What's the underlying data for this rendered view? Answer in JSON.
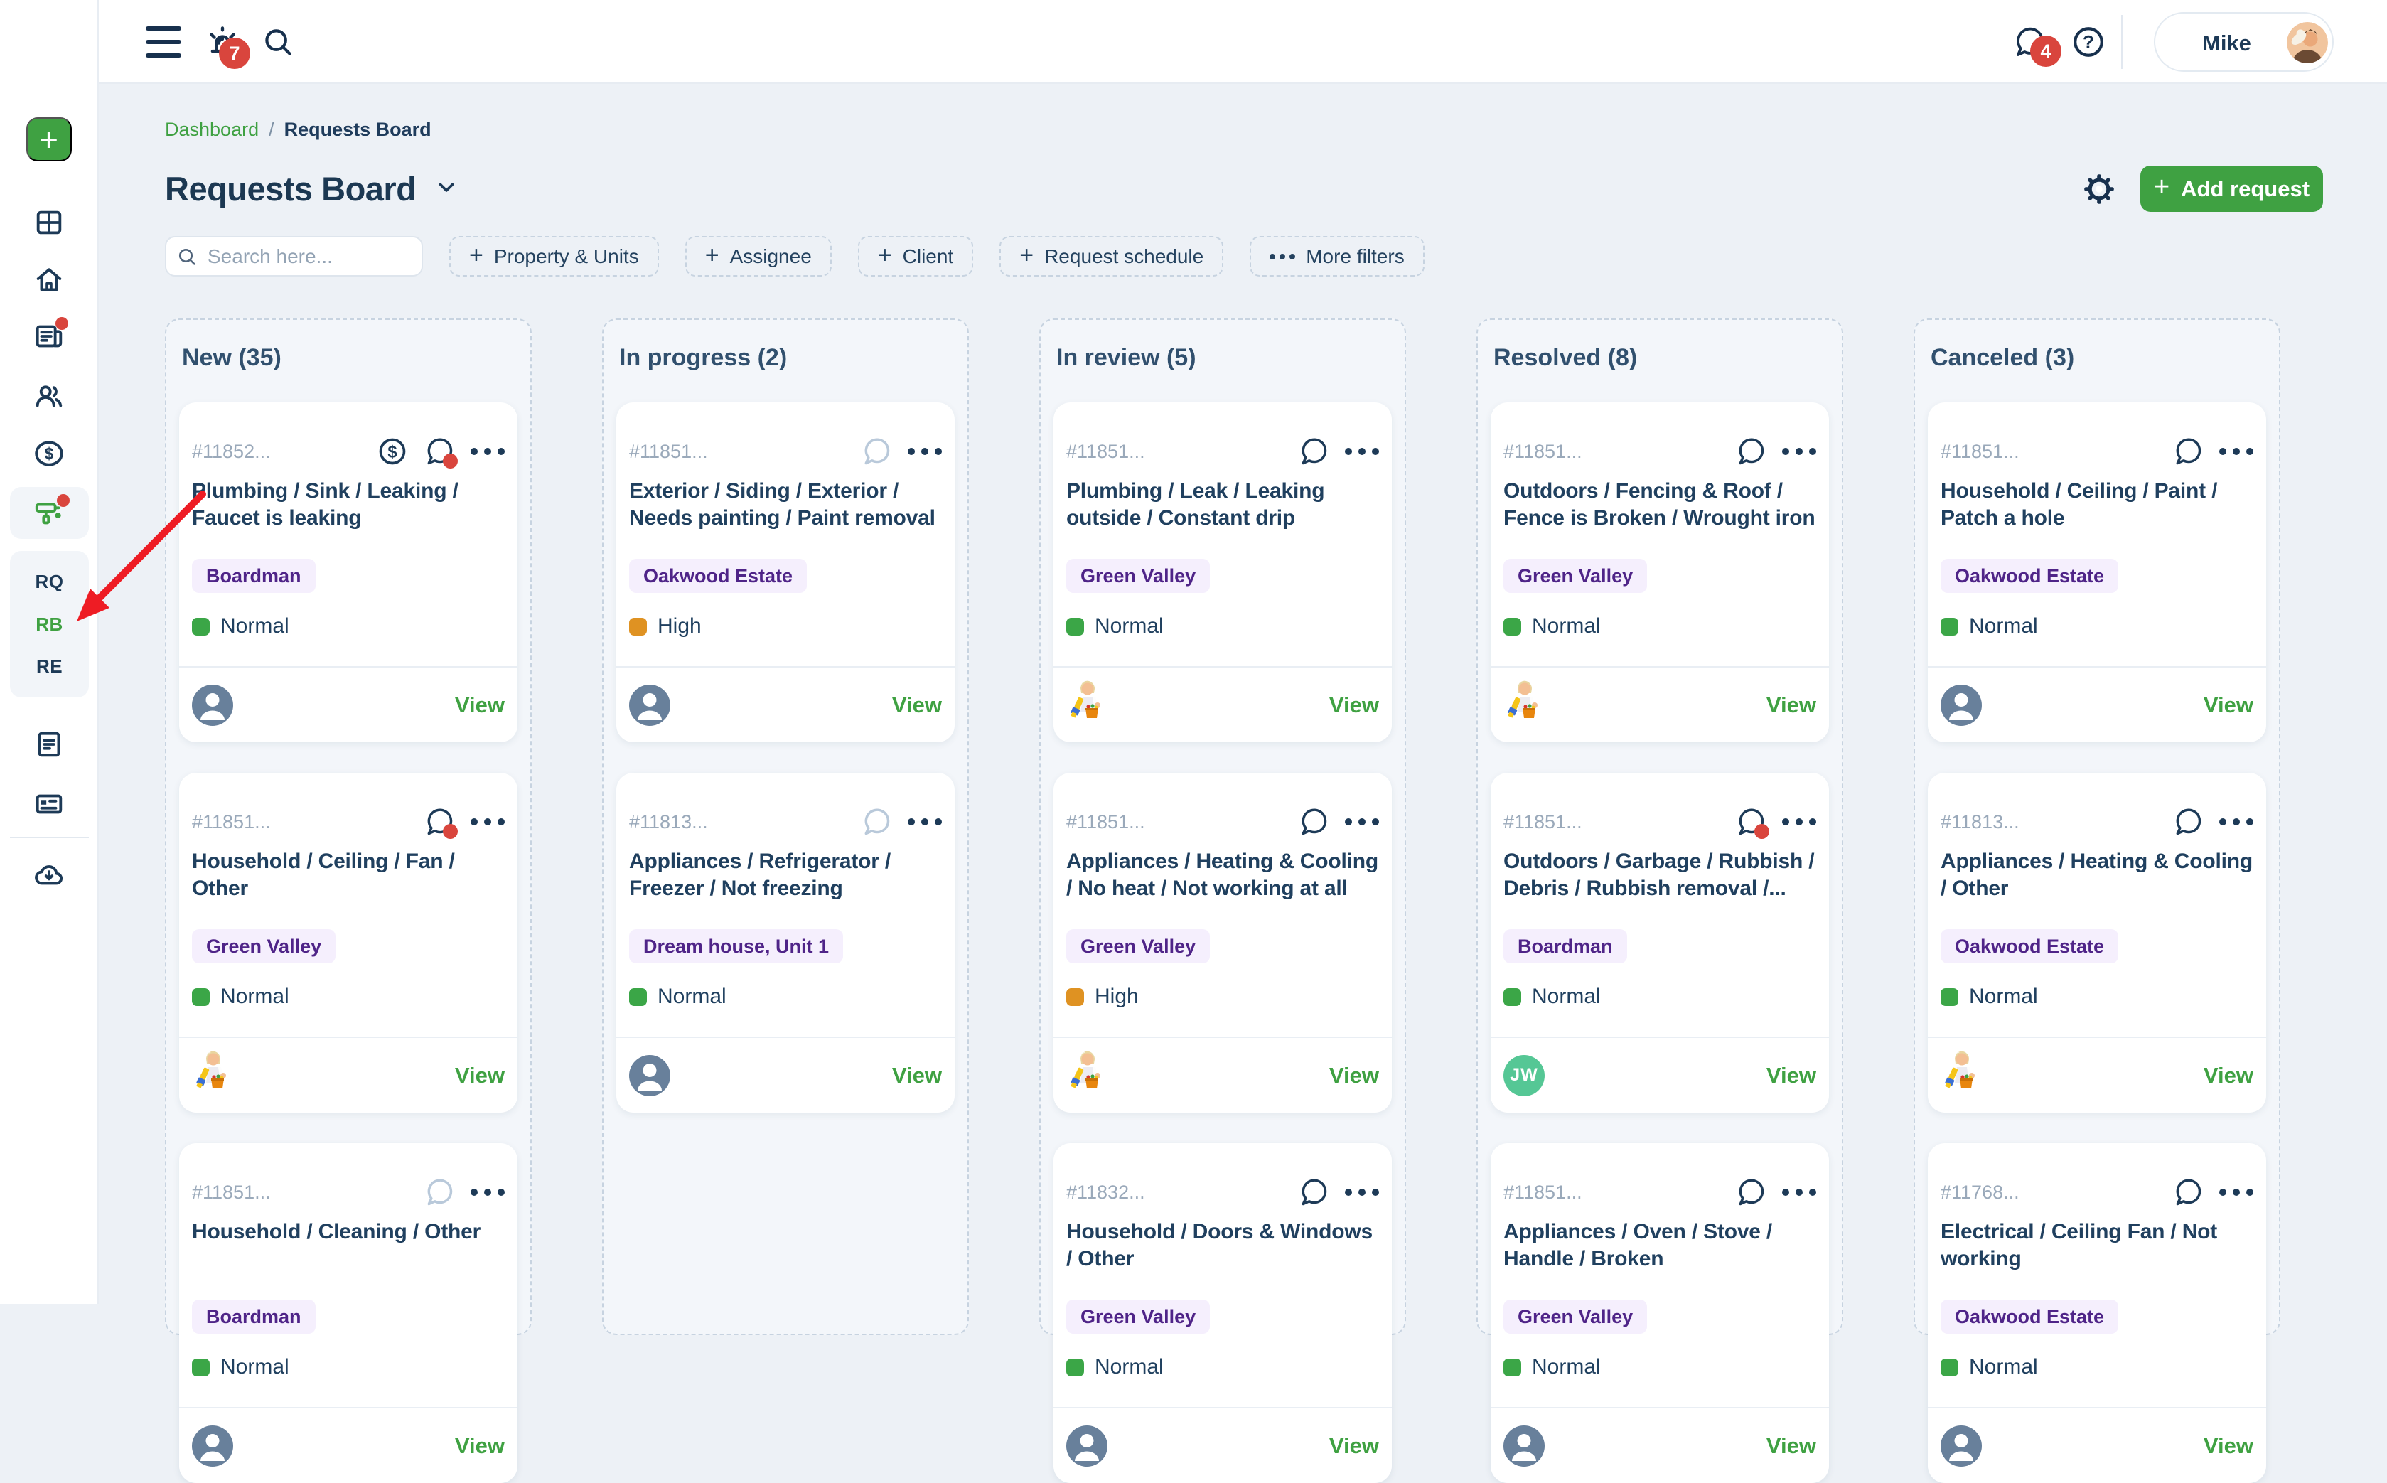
{
  "topbar": {
    "notifications_badge": "7",
    "messages_badge": "4",
    "user_name": "Mike"
  },
  "breadcrumb": {
    "parent": "Dashboard",
    "separator": "/",
    "current": "Requests Board"
  },
  "page": {
    "title": "Requests Board"
  },
  "actions": {
    "add_request": "Add request"
  },
  "glyphs": {
    "plus": "+"
  },
  "filters": {
    "search_placeholder": "Search here...",
    "chips": [
      {
        "label": "Property & Units"
      },
      {
        "label": "Assignee"
      },
      {
        "label": "Client"
      },
      {
        "label": "Request schedule"
      }
    ],
    "more_filters": "More filters"
  },
  "sidebar": {
    "icons": [
      "add",
      "dashboard-grid",
      "home",
      "news",
      "people",
      "billing",
      "requests-roller",
      "documents",
      "reports",
      "downloads"
    ],
    "shortcuts": [
      {
        "label": "RQ",
        "active": false
      },
      {
        "label": "RB",
        "active": true
      },
      {
        "label": "RE",
        "active": false
      }
    ]
  },
  "colors": {
    "accent_green": "#3fa142",
    "badge_red": "#d9453d",
    "priority_normal": "#3ba647",
    "priority_high": "#df9222",
    "tag_purple_bg": "#f5effd",
    "tag_purple_text": "#4f2488",
    "navy": "#1d3a57"
  },
  "board": {
    "view_label": "View",
    "columns": [
      {
        "title": "New (35)",
        "cards": [
          {
            "id": "#11852...",
            "icons": {
              "money": true,
              "chat": "dark",
              "chat_dot": true
            },
            "title": "Plumbing / Sink / Leaking / Faucet is leaking",
            "tag": "Boardman",
            "priority": {
              "label": "Normal",
              "level": "normal"
            },
            "avatar": {
              "type": "placeholder"
            }
          },
          {
            "id": "#11851...",
            "icons": {
              "money": false,
              "chat": "dark",
              "chat_dot": true
            },
            "title": "Household / Ceiling / Fan / Other",
            "tag": "Green Valley",
            "priority": {
              "label": "Normal",
              "level": "normal"
            },
            "avatar": {
              "type": "photo"
            }
          },
          {
            "id": "#11851...",
            "icons": {
              "money": false,
              "chat": "light",
              "chat_dot": false
            },
            "title": "Household / Cleaning / Other",
            "tag": "Boardman",
            "priority": {
              "label": "Normal",
              "level": "normal"
            },
            "avatar": {
              "type": "placeholder"
            }
          }
        ]
      },
      {
        "title": "In progress (2)",
        "cards": [
          {
            "id": "#11851...",
            "icons": {
              "money": false,
              "chat": "light",
              "chat_dot": false
            },
            "title": "Exterior / Siding / Exterior / Needs painting / Paint removal",
            "tag": "Oakwood Estate",
            "priority": {
              "label": "High",
              "level": "high"
            },
            "avatar": {
              "type": "placeholder"
            }
          },
          {
            "id": "#11813...",
            "icons": {
              "money": false,
              "chat": "light",
              "chat_dot": false
            },
            "title": "Appliances / Refrigerator / Freezer / Not freezing",
            "tag": "Dream house, Unit 1",
            "priority": {
              "label": "Normal",
              "level": "normal"
            },
            "avatar": {
              "type": "placeholder"
            }
          }
        ]
      },
      {
        "title": "In review (5)",
        "cards": [
          {
            "id": "#11851...",
            "icons": {
              "money": false,
              "chat": "dark",
              "chat_dot": false
            },
            "title": "Plumbing / Leak / Leaking outside / Constant drip",
            "tag": "Green Valley",
            "priority": {
              "label": "Normal",
              "level": "normal"
            },
            "avatar": {
              "type": "photo"
            }
          },
          {
            "id": "#11851...",
            "icons": {
              "money": false,
              "chat": "dark",
              "chat_dot": false
            },
            "title": "Appliances / Heating & Cooling / No heat / Not working at all",
            "tag": "Green Valley",
            "priority": {
              "label": "High",
              "level": "high"
            },
            "avatar": {
              "type": "photo"
            }
          },
          {
            "id": "#11832...",
            "icons": {
              "money": false,
              "chat": "dark",
              "chat_dot": false
            },
            "title": "Household / Doors & Windows / Other",
            "tag": "Green Valley",
            "priority": {
              "label": "Normal",
              "level": "normal"
            },
            "avatar": {
              "type": "placeholder"
            }
          }
        ]
      },
      {
        "title": "Resolved (8)",
        "cards": [
          {
            "id": "#11851...",
            "icons": {
              "money": false,
              "chat": "dark",
              "chat_dot": false
            },
            "title": "Outdoors / Fencing & Roof / Fence is Broken / Wrought iron fence",
            "tag": "Green Valley",
            "priority": {
              "label": "Normal",
              "level": "normal"
            },
            "avatar": {
              "type": "photo"
            }
          },
          {
            "id": "#11851...",
            "icons": {
              "money": false,
              "chat": "dark",
              "chat_dot": true
            },
            "title": "Outdoors / Garbage / Rubbish / Debris / Rubbish removal /...",
            "tag": "Boardman",
            "priority": {
              "label": "Normal",
              "level": "normal"
            },
            "avatar": {
              "type": "initials",
              "initials": "JW"
            }
          },
          {
            "id": "#11851...",
            "icons": {
              "money": false,
              "chat": "dark",
              "chat_dot": false
            },
            "title": "Appliances / Oven / Stove / Handle / Broken",
            "tag": "Green Valley",
            "priority": {
              "label": "Normal",
              "level": "normal"
            },
            "avatar": {
              "type": "placeholder"
            }
          }
        ]
      },
      {
        "title": "Canceled (3)",
        "cards": [
          {
            "id": "#11851...",
            "icons": {
              "money": false,
              "chat": "dark",
              "chat_dot": false
            },
            "title": "Household / Ceiling / Paint / Patch a hole",
            "tag": "Oakwood Estate",
            "priority": {
              "label": "Normal",
              "level": "normal"
            },
            "avatar": {
              "type": "placeholder"
            }
          },
          {
            "id": "#11813...",
            "icons": {
              "money": false,
              "chat": "dark",
              "chat_dot": false
            },
            "title": "Appliances / Heating & Cooling / Other",
            "tag": "Oakwood Estate",
            "priority": {
              "label": "Normal",
              "level": "normal"
            },
            "avatar": {
              "type": "photo"
            }
          },
          {
            "id": "#11768...",
            "icons": {
              "money": false,
              "chat": "dark",
              "chat_dot": false
            },
            "title": "Electrical / Ceiling Fan / Not working",
            "tag": "Oakwood Estate",
            "priority": {
              "label": "Normal",
              "level": "normal"
            },
            "avatar": {
              "type": "placeholder"
            }
          }
        ]
      }
    ]
  }
}
